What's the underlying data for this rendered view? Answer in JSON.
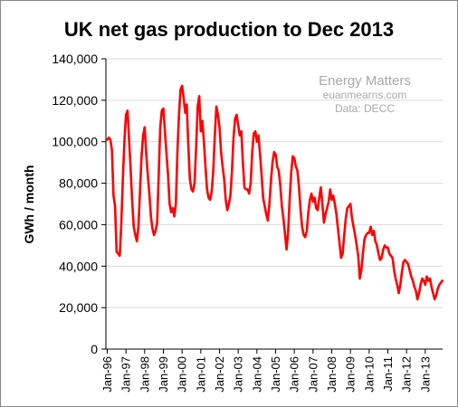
{
  "chart_data": {
    "type": "line",
    "title": "UK net gas production to Dec 2013",
    "ylabel": "GWh / month",
    "xlabel": "",
    "ylim": [
      0,
      140000
    ],
    "y_ticks": [
      0,
      20000,
      40000,
      60000,
      80000,
      100000,
      120000,
      140000
    ],
    "y_tick_labels": [
      "0",
      "20,000",
      "40,000",
      "60,000",
      "80,000",
      "100,000",
      "120,000",
      "140,000"
    ],
    "x_tick_labels": [
      "Jan-96",
      "Jan-97",
      "Jan-98",
      "Jan-99",
      "Jan-00",
      "Jan-01",
      "Jan-02",
      "Jan-03",
      "Jan-04",
      "Jan-05",
      "Jan-06",
      "Jan-07",
      "Jan-08",
      "Jan-09",
      "Jan-10",
      "Jan-11",
      "Jan-12",
      "Jan-13"
    ],
    "grid": true,
    "legend": "none",
    "series_color": "#ff0000",
    "start_month": "Jan-96",
    "series": [
      {
        "values": [
          101000,
          102000,
          101000,
          96000,
          74000,
          69000,
          47000,
          46000,
          45000,
          60000,
          82000,
          100000,
          113000,
          115000,
          101000,
          87000,
          71000,
          59000,
          55000,
          52000,
          59000,
          76000,
          93000,
          103000,
          107000,
          94000,
          84000,
          75000,
          64000,
          58000,
          55000,
          57000,
          61000,
          84000,
          107000,
          115000,
          116000,
          105000,
          94000,
          84000,
          70000,
          66000,
          68000,
          64000,
          70000,
          95000,
          113000,
          125000,
          127000,
          121000,
          114000,
          118000,
          98000,
          82000,
          77000,
          76000,
          80000,
          97000,
          117000,
          122000,
          105000,
          110000,
          100000,
          88000,
          77000,
          73000,
          72000,
          76000,
          86000,
          103000,
          117000,
          113000,
          107000,
          95000,
          88000,
          82000,
          72000,
          67000,
          70000,
          74000,
          86000,
          102000,
          111000,
          113000,
          108000,
          103000,
          105000,
          90000,
          78000,
          77000,
          77000,
          75000,
          80000,
          95000,
          104000,
          105000,
          100000,
          103000,
          94000,
          84000,
          73000,
          69000,
          65000,
          62000,
          70000,
          81000,
          90000,
          95000,
          94000,
          88000,
          86000,
          79000,
          69000,
          63000,
          56000,
          48000,
          56000,
          72000,
          85000,
          93000,
          92000,
          88000,
          86000,
          78000,
          67000,
          59000,
          55000,
          54000,
          57000,
          66000,
          72000,
          75000,
          71000,
          73000,
          68000,
          67000,
          73000,
          78000,
          70000,
          61000,
          65000,
          68000,
          71000,
          77000,
          72000,
          74000,
          70000,
          65000,
          58000,
          51000,
          44000,
          46000,
          55000,
          63000,
          68000,
          69000,
          70000,
          63000,
          59000,
          55000,
          50000,
          45000,
          34000,
          38000,
          46000,
          53000,
          55000,
          56000,
          56000,
          59000,
          55000,
          57000,
          52000,
          50000,
          46000,
          43000,
          44000,
          48000,
          50000,
          49000,
          49000,
          46000,
          45000,
          44000,
          38000,
          34000,
          31000,
          27000,
          31000,
          37000,
          42000,
          43000,
          42000,
          41000,
          38000,
          35000,
          33000,
          30000,
          28000,
          24000,
          27000,
          31000,
          34000,
          33000,
          31000,
          35000,
          33000,
          34000,
          30000,
          27000,
          24000,
          26000,
          29000,
          31000,
          32000,
          33000
        ]
      }
    ]
  },
  "watermark": {
    "line1": "Energy Matters",
    "line2": "euanmearns.com",
    "line3": "Data: DECC"
  }
}
